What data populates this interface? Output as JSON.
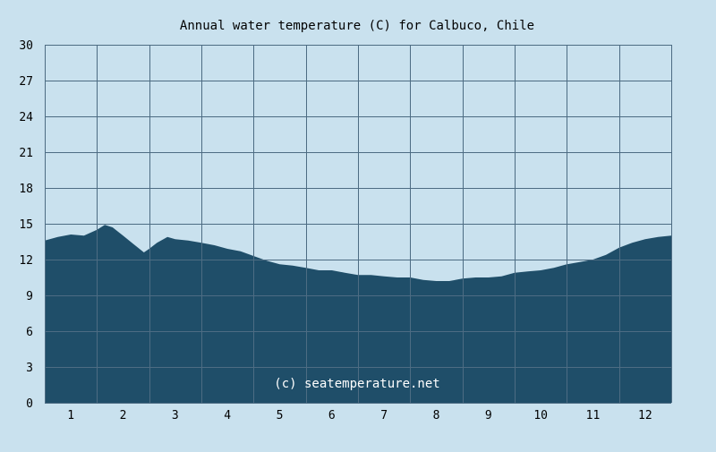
{
  "colors": {
    "background": "#c9e1ee",
    "area_fill": "#1f4e69",
    "grid_line": "#4d6c83",
    "watermark": "#ffffff"
  },
  "chart_data": {
    "type": "area",
    "title": "Annual water temperature (C) for Calbuco, Chile",
    "xlabel": "",
    "ylabel": "",
    "x_tick_labels": [
      "1",
      "2",
      "3",
      "4",
      "5",
      "6",
      "7",
      "8",
      "9",
      "10",
      "11",
      "12"
    ],
    "y_ticks": [
      0,
      3,
      6,
      9,
      12,
      15,
      18,
      21,
      24,
      27,
      30
    ],
    "ylim": [
      0,
      30
    ],
    "xlim": [
      0.5,
      12.5
    ],
    "grid": true,
    "legend": "none",
    "watermark": "(c) seatemperature.net",
    "series": [
      {
        "x": [
          0.5,
          0.75,
          1.0,
          1.25,
          1.5,
          1.65,
          1.8,
          2.0,
          2.2,
          2.4,
          2.5,
          2.65,
          2.85,
          3.0,
          3.25,
          3.5,
          3.75,
          4.0,
          4.25,
          4.5,
          4.75,
          5.0,
          5.25,
          5.5,
          5.75,
          6.0,
          6.25,
          6.5,
          6.75,
          7.0,
          7.25,
          7.5,
          7.75,
          8.0,
          8.25,
          8.5,
          8.75,
          9.0,
          9.25,
          9.5,
          9.75,
          10.0,
          10.25,
          10.5,
          10.75,
          11.0,
          11.25,
          11.5,
          11.75,
          12.0,
          12.25,
          12.5
        ],
        "values": [
          13.6,
          13.9,
          14.1,
          14.0,
          14.5,
          14.9,
          14.7,
          14.0,
          13.3,
          12.6,
          12.9,
          13.4,
          13.9,
          13.7,
          13.6,
          13.4,
          13.2,
          12.9,
          12.7,
          12.3,
          11.9,
          11.6,
          11.5,
          11.3,
          11.1,
          11.1,
          10.9,
          10.7,
          10.7,
          10.6,
          10.5,
          10.5,
          10.3,
          10.2,
          10.2,
          10.4,
          10.5,
          10.5,
          10.6,
          10.9,
          11.0,
          11.1,
          11.3,
          11.6,
          11.8,
          12.0,
          12.4,
          13.0,
          13.4,
          13.7,
          13.9,
          14.0
        ]
      }
    ]
  }
}
